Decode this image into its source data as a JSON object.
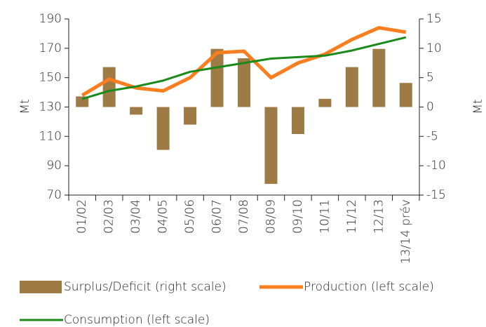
{
  "chart_data": {
    "type": "bar",
    "categories": [
      "01/02",
      "02/03",
      "03/04",
      "04/05",
      "05/06",
      "06/07",
      "07/08",
      "08/09",
      "09/10",
      "10/11",
      "11/12",
      "12/13",
      "13/14 prév"
    ],
    "series": [
      {
        "name": "Surplus/Deficit (right scale)",
        "type": "bar",
        "axis": "y2",
        "color": "#9e7b45",
        "values": [
          1.8,
          6.8,
          -1.3,
          -7.3,
          -3.0,
          9.9,
          8.3,
          -13.1,
          -4.6,
          1.4,
          6.8,
          9.9,
          4.1
        ]
      },
      {
        "name": "Production (left scale)",
        "type": "line",
        "color": "#f97e1f",
        "values": [
          138,
          149,
          143,
          141,
          150,
          167,
          168,
          150,
          160,
          166,
          176,
          184,
          181
        ]
      },
      {
        "name": "Consumption (left scale)",
        "type": "line",
        "color": "#1a8a1a",
        "values": [
          135.5,
          141,
          144,
          148,
          154,
          157,
          160,
          163,
          164,
          165,
          168.5,
          173,
          177.5
        ]
      }
    ],
    "ylabel": "Mt",
    "y2label": "Mt",
    "ylim": [
      70,
      190
    ],
    "yticks": [
      70,
      90,
      110,
      130,
      150,
      170,
      190
    ],
    "y2lim": [
      -15,
      15
    ],
    "y2ticks": [
      -15,
      -10,
      -5,
      0,
      5,
      10,
      15
    ]
  }
}
